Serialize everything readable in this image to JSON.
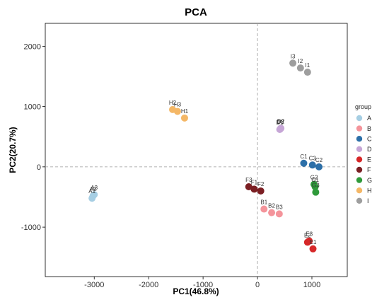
{
  "chart_data": {
    "type": "scatter",
    "title": "PCA",
    "xlabel": "PC1(46.8%)",
    "ylabel": "PC2(20.7%)",
    "xlim": [
      -3900,
      1650
    ],
    "ylim": [
      -1820,
      2380
    ],
    "xticks": [
      -3000,
      -2000,
      -1000,
      0,
      1000
    ],
    "yticks": [
      -1000,
      0,
      1000,
      2000
    ],
    "grid": false,
    "reference_lines": {
      "x": 0,
      "y": 0
    },
    "legend": {
      "title": "group",
      "position": "right",
      "entries": [
        {
          "name": "A",
          "color": "#a6cee3"
        },
        {
          "name": "B",
          "color": "#f4949b"
        },
        {
          "name": "C",
          "color": "#2c6fa8"
        },
        {
          "name": "D",
          "color": "#c6a6d6"
        },
        {
          "name": "E",
          "color": "#d62728"
        },
        {
          "name": "F",
          "color": "#7b1f23"
        },
        {
          "name": "G",
          "color": "#2f9a3a"
        },
        {
          "name": "H",
          "color": "#f4b766"
        },
        {
          "name": "I",
          "color": "#9e9e9e"
        }
      ]
    },
    "points": [
      {
        "label": "A1",
        "group": "A",
        "x": -3040,
        "y": -520
      },
      {
        "label": "A2",
        "group": "A",
        "x": -3020,
        "y": -480
      },
      {
        "label": "A3",
        "group": "A",
        "x": -3000,
        "y": -460
      },
      {
        "label": "B1",
        "group": "B",
        "x": 120,
        "y": -700
      },
      {
        "label": "B2",
        "group": "B",
        "x": 260,
        "y": -760
      },
      {
        "label": "B3",
        "group": "B",
        "x": 400,
        "y": -780
      },
      {
        "label": "C1",
        "group": "C",
        "x": 850,
        "y": 60
      },
      {
        "label": "C2",
        "group": "C",
        "x": 1130,
        "y": 0
      },
      {
        "label": "C3",
        "group": "C",
        "x": 1010,
        "y": 30
      },
      {
        "label": "D1",
        "group": "D",
        "x": 410,
        "y": 620
      },
      {
        "label": "D2",
        "group": "D",
        "x": 430,
        "y": 640
      },
      {
        "label": "D3",
        "group": "D",
        "x": 420,
        "y": 630
      },
      {
        "label": "E1",
        "group": "E",
        "x": 1020,
        "y": -1360
      },
      {
        "label": "E2",
        "group": "E",
        "x": 920,
        "y": -1250
      },
      {
        "label": "E3",
        "group": "E",
        "x": 950,
        "y": -1230
      },
      {
        "label": "F1",
        "group": "F",
        "x": -60,
        "y": -370
      },
      {
        "label": "F2",
        "group": "F",
        "x": 60,
        "y": -400
      },
      {
        "label": "F3",
        "group": "F",
        "x": -160,
        "y": -330
      },
      {
        "label": "G1",
        "group": "G",
        "x": 1060,
        "y": -330
      },
      {
        "label": "G2",
        "group": "G",
        "x": 1040,
        "y": -290
      },
      {
        "label": "G3",
        "group": "G",
        "x": 1070,
        "y": -420
      },
      {
        "label": "H1",
        "group": "H",
        "x": -1340,
        "y": 810
      },
      {
        "label": "H2",
        "group": "H",
        "x": -1560,
        "y": 950
      },
      {
        "label": "H3",
        "group": "H",
        "x": -1470,
        "y": 920
      },
      {
        "label": "I1",
        "group": "I",
        "x": 920,
        "y": 1570
      },
      {
        "label": "I2",
        "group": "I",
        "x": 790,
        "y": 1640
      },
      {
        "label": "I3",
        "group": "I",
        "x": 650,
        "y": 1720
      }
    ]
  }
}
